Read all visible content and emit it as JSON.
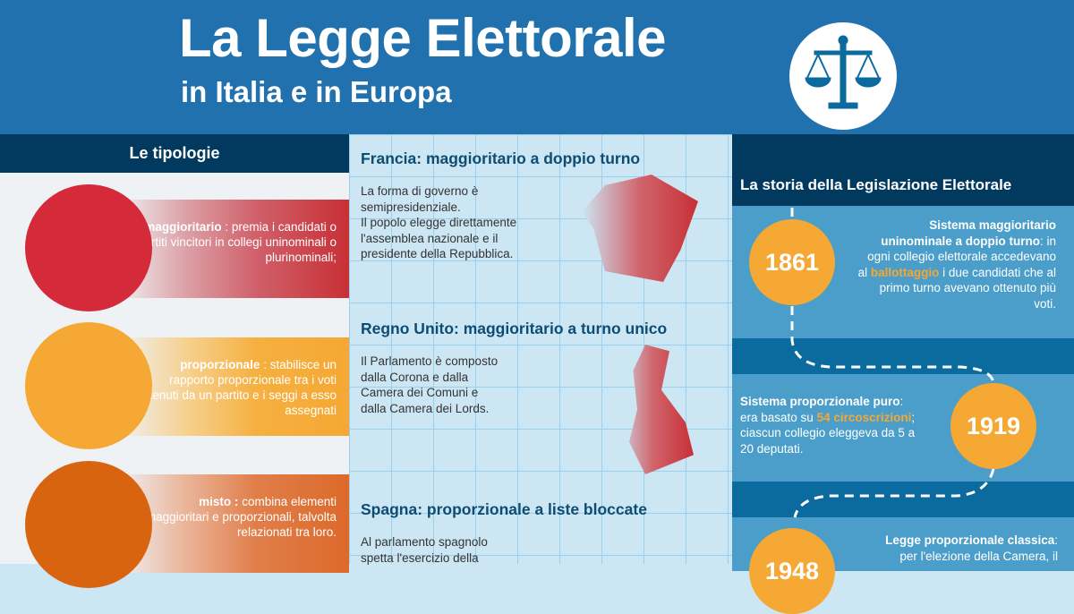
{
  "header": {
    "title": "La Legge Elettorale",
    "subtitle": "in Italia e in Europa",
    "icon": "scale-icon"
  },
  "colors": {
    "header": "#2071ad",
    "navy": "#023a5f",
    "red": "#d42a3a",
    "orange": "#f5a833",
    "dark_orange": "#dd6a2a",
    "year_circle": "#f5a833"
  },
  "left": {
    "title": "Le tipologie",
    "items": [
      {
        "term": "maggioritario",
        "desc": " : premia i candidati o partiti vincitori in collegi uninominali o plurinominali;"
      },
      {
        "term": "proporzionale",
        "desc": " : stabilisce un rapporto proporzionale tra i voti ottenuti da un partito e i seggi a esso assegnati"
      },
      {
        "term": "misto :",
        "desc": " combina elementi maggioritari e proporzionali, talvolta relazionati tra loro."
      }
    ]
  },
  "middle": {
    "countries": [
      {
        "heading": "Francia: maggioritario a doppio turno",
        "text": "La forma di governo è\nsemipresidenziale.\nIl popolo elegge direttamente\nl'assemblea nazionale e il\npresidente della Repubblica."
      },
      {
        "heading": "Regno Unito: maggioritario a turno unico",
        "text": "Il Parlamento è composto\ndalla Corona e  dalla\nCamera dei Comuni e\ndalla Camera dei Lords."
      },
      {
        "heading": "Spagna: proporzionale a liste bloccate",
        "text": "Al parlamento spagnolo\nspetta l'esercizio della"
      }
    ]
  },
  "right": {
    "title": "La storia della Legislazione Elettorale",
    "events": [
      {
        "year": "1861",
        "bold": "Sistema maggioritario uninominale a doppio turno",
        "t1": ": in ogni collegio elettorale accedevano al ",
        "hl": "ballottaggio",
        "t2": " i due candidati che al primo turno avevano ottenuto più voti."
      },
      {
        "year": "1919",
        "bold": "Sistema proporzionale puro",
        "t1": ": era basato su ",
        "hl": "54 circoscrizioni",
        "t2": "; ciascun collegio eleggeva da 5 a 20 deputati."
      },
      {
        "year": "1948",
        "bold": "Legge proporzionale classica",
        "t1": ": per l'elezione della Camera, il",
        "hl": "",
        "t2": ""
      }
    ]
  }
}
